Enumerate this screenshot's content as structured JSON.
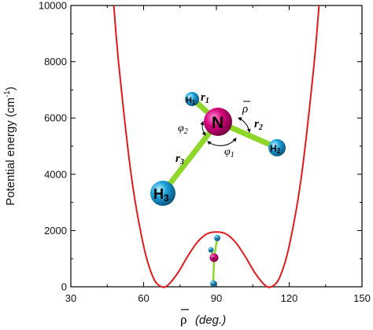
{
  "chart_data": {
    "type": "line",
    "xlabel_symbol": "ρ",
    "xlabel_unit": "(deg.)",
    "ylabel": "Potential energy (cm",
    "ylabel_sup": "-1",
    "ylabel_close": ")",
    "xlim": [
      30,
      150
    ],
    "ylim": [
      0,
      10000
    ],
    "x_ticks": [
      "30",
      "60",
      "90",
      "120",
      "150"
    ],
    "y_ticks": [
      "0",
      "2000",
      "4000",
      "6000",
      "8000",
      "10000"
    ],
    "grid": false,
    "legend": "none",
    "series": [
      {
        "color": "#e31a1c",
        "x": [
          47.7,
          50,
          55,
          60,
          64,
          67.4,
          70,
          74,
          78,
          82,
          86,
          90,
          94,
          98,
          102,
          106,
          110,
          112.6,
          116,
          120,
          125,
          130,
          132.3
        ],
        "y": [
          10000,
          7700,
          3900,
          1450,
          320,
          0,
          60,
          480,
          1060,
          1570,
          1880,
          1950,
          1880,
          1570,
          1060,
          480,
          60,
          0,
          320,
          1450,
          3900,
          7700,
          10000
        ]
      }
    ]
  },
  "molecule": {
    "atoms": {
      "n": "N",
      "h1": "H",
      "h1_sub": "1",
      "h2": "H",
      "h2_sub": "2",
      "h3": "H",
      "h3_sub": "3"
    },
    "params": {
      "r1": "r",
      "r1_sub": "1",
      "r2": "r",
      "r2_sub": "2",
      "r3": "r",
      "r3_sub": "3",
      "phi1": "φ",
      "phi1_sub": "1",
      "phi2": "φ",
      "phi2_sub": "2",
      "rho": "ρ"
    },
    "small_atoms": {
      "n": "N",
      "h": "H"
    },
    "colors": {
      "nitrogen": "#d6007a",
      "hydrogen": "#1aa0d8",
      "bond": "#8fd62a"
    }
  }
}
